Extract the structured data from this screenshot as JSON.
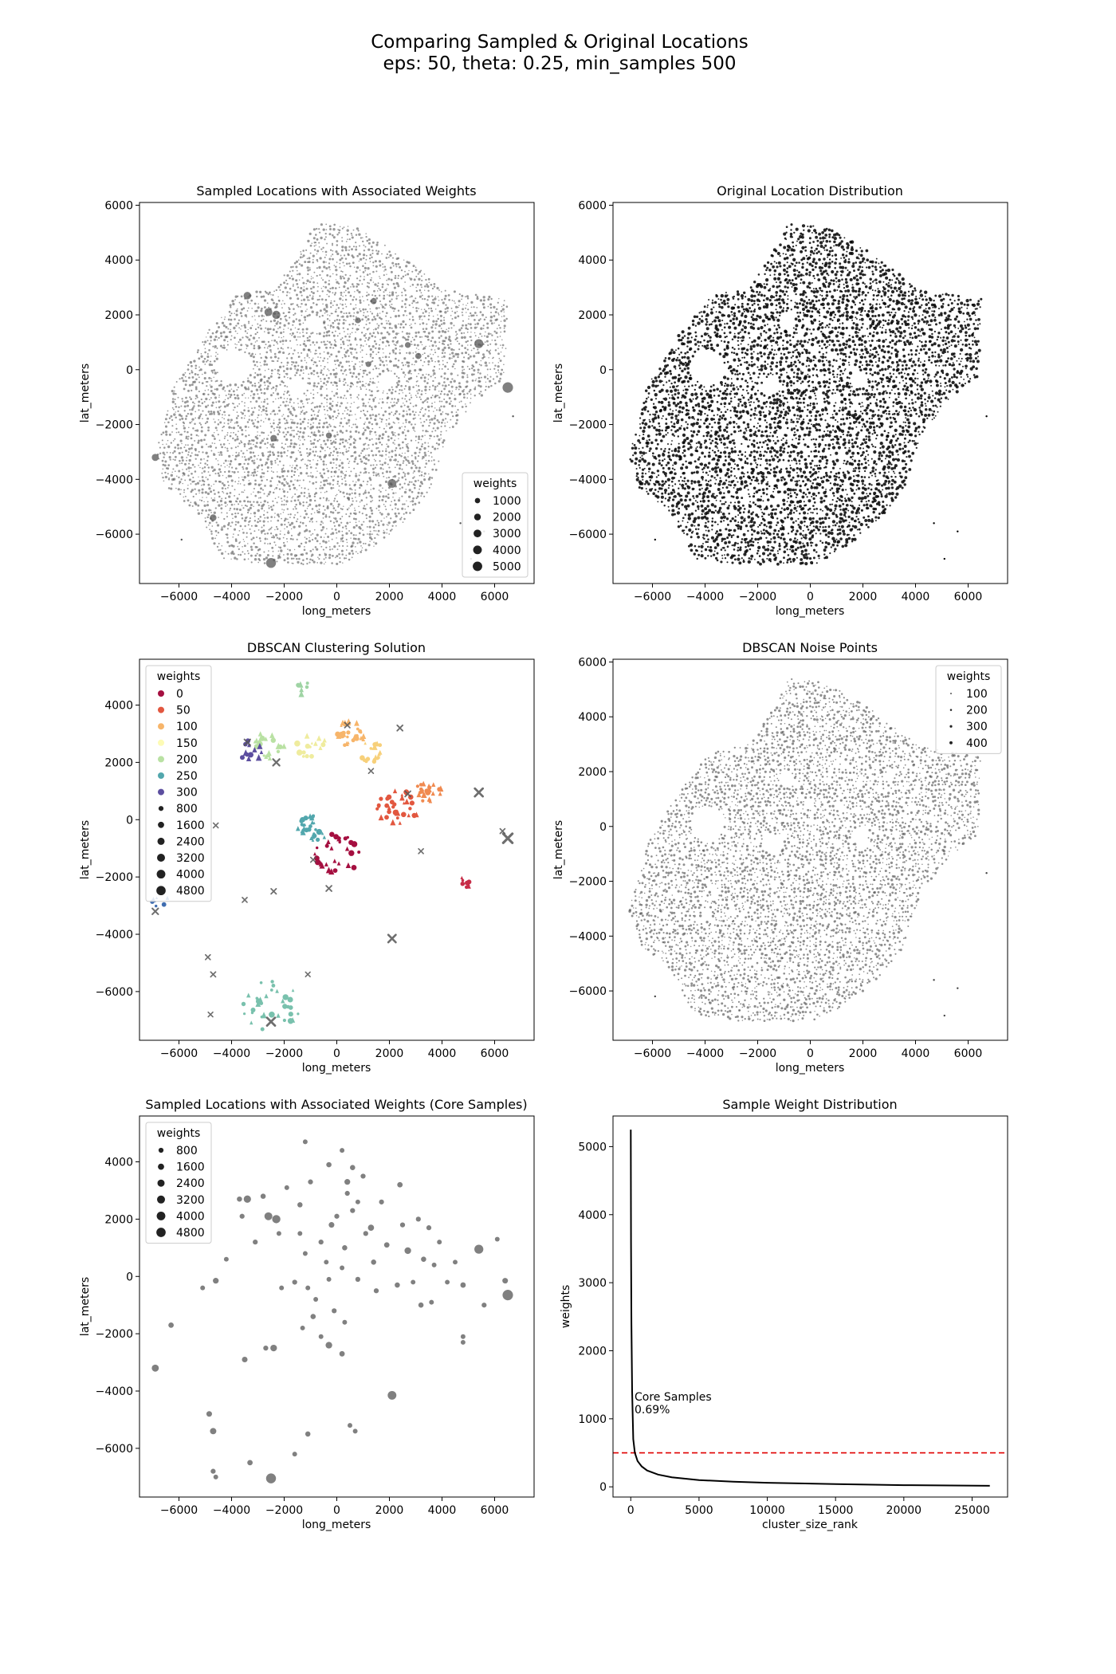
{
  "figure": {
    "title_line1": "Comparing Sampled & Original Locations",
    "title_line2": "eps: 50, theta: 0.25, min_samples 500"
  },
  "chart_data": [
    {
      "id": "sampled",
      "type": "scatter",
      "title": "Sampled Locations with Associated Weights",
      "xlabel": "long_meters",
      "ylabel": "lat_meters",
      "xlim": [
        -7500,
        7500
      ],
      "ylim": [
        -7800,
        6100
      ],
      "xticks": [
        -6000,
        -4000,
        -2000,
        0,
        2000,
        4000,
        6000
      ],
      "yticks": [
        -6000,
        -4000,
        -2000,
        0,
        2000,
        4000,
        6000
      ],
      "marker_color": "#555555",
      "legend": {
        "title": "weights",
        "location": "lower-right",
        "entries": [
          "1000",
          "2000",
          "3000",
          "4000",
          "5000"
        ],
        "sizes": [
          1000,
          2000,
          3000,
          4000,
          5000
        ]
      },
      "texture": "dense",
      "highlights": [
        [
          6500,
          -650,
          5200
        ],
        [
          -2500,
          -7050,
          4500
        ],
        [
          5400,
          950,
          3500
        ],
        [
          2100,
          -4150,
          3200
        ],
        [
          -2300,
          2000,
          2800
        ],
        [
          -2600,
          2100,
          2500
        ],
        [
          -3400,
          2700,
          2200
        ],
        [
          -6900,
          -3200,
          1800
        ],
        [
          -4700,
          -5400,
          1500
        ],
        [
          -2400,
          -2500,
          1500
        ],
        [
          1400,
          2500,
          1200
        ],
        [
          3100,
          500,
          1200
        ],
        [
          -300,
          -2400,
          1100
        ],
        [
          800,
          1800,
          1000
        ],
        [
          1200,
          200,
          900
        ],
        [
          2700,
          900,
          1000
        ]
      ]
    },
    {
      "id": "original",
      "type": "scatter",
      "title": "Original Location Distribution",
      "xlabel": "long_meters",
      "ylabel": "lat_meters",
      "xlim": [
        -7500,
        7500
      ],
      "ylim": [
        -7800,
        6100
      ],
      "xticks": [
        -6000,
        -4000,
        -2000,
        0,
        2000,
        4000,
        6000
      ],
      "yticks": [
        -6000,
        -4000,
        -2000,
        0,
        2000,
        4000,
        6000
      ],
      "marker_color": "#000000",
      "texture": "dense"
    },
    {
      "id": "dbscan",
      "type": "scatter",
      "title": "DBSCAN Clustering Solution",
      "xlabel": "long_meters",
      "ylabel": "lat_meters",
      "xlim": [
        -7500,
        7500
      ],
      "ylim": [
        -7700,
        5600
      ],
      "xticks": [
        -6000,
        -4000,
        -2000,
        0,
        2000,
        4000,
        6000
      ],
      "yticks": [
        -6000,
        -4000,
        -2000,
        0,
        2000,
        4000
      ],
      "legend": {
        "title": "weights",
        "location": "upper-left",
        "color_entries": [
          {
            "label": "0",
            "color": "#a50f40"
          },
          {
            "label": "50",
            "color": "#e2573f"
          },
          {
            "label": "100",
            "color": "#f7b56a"
          },
          {
            "label": "150",
            "color": "#fdfbb5"
          },
          {
            "label": "200",
            "color": "#b9e1a3"
          },
          {
            "label": "250",
            "color": "#52a7ad"
          },
          {
            "label": "300",
            "color": "#5c4e9f"
          }
        ],
        "size_entries": [
          "800",
          "1600",
          "2400",
          "3200",
          "4000",
          "4800"
        ],
        "sizes": [
          800,
          1600,
          2400,
          3200,
          4000,
          4800
        ]
      },
      "clusters": [
        {
          "color": "#a50f40",
          "cx": 0,
          "cy": -1200,
          "spread": 900,
          "n": 30
        },
        {
          "color": "#c72d48",
          "cx": 4800,
          "cy": -2200,
          "spread": 250,
          "n": 8
        },
        {
          "color": "#e2573f",
          "cx": 2300,
          "cy": 400,
          "spread": 800,
          "n": 35
        },
        {
          "color": "#f08a50",
          "cx": 3500,
          "cy": 1000,
          "spread": 500,
          "n": 25
        },
        {
          "color": "#f7b56a",
          "cx": 500,
          "cy": 3000,
          "spread": 600,
          "n": 30
        },
        {
          "color": "#f7d07a",
          "cx": 1300,
          "cy": 2400,
          "spread": 500,
          "n": 20
        },
        {
          "color": "#efec9e",
          "cx": -1000,
          "cy": 2600,
          "spread": 600,
          "n": 15
        },
        {
          "color": "#b9e1a3",
          "cx": -2600,
          "cy": 2600,
          "spread": 600,
          "n": 20
        },
        {
          "color": "#9fd4a4",
          "cx": -1300,
          "cy": 4600,
          "spread": 300,
          "n": 6
        },
        {
          "color": "#52a7ad",
          "cx": -900,
          "cy": -300,
          "spread": 600,
          "n": 30
        },
        {
          "color": "#79c1ad",
          "cx": -2500,
          "cy": -6500,
          "spread": 1100,
          "n": 35
        },
        {
          "color": "#5c4e9f",
          "cx": -3200,
          "cy": 2400,
          "spread": 500,
          "n": 12
        },
        {
          "color": "#3f6db0",
          "cx": -6800,
          "cy": -2800,
          "spread": 400,
          "n": 6
        }
      ],
      "core_markers": [
        [
          6500,
          -650,
          5000
        ],
        [
          5400,
          950,
          3500
        ],
        [
          2100,
          -4150,
          3000
        ],
        [
          -2500,
          -7050,
          3500
        ],
        [
          -2300,
          2000,
          2000
        ],
        [
          -3400,
          2700,
          1500
        ],
        [
          2400,
          3200,
          1200
        ],
        [
          -6900,
          -3200,
          1500
        ],
        [
          -300,
          -2400,
          1200
        ],
        [
          -4700,
          -5400,
          900
        ],
        [
          2700,
          900,
          1200
        ],
        [
          -2400,
          -2500,
          1000
        ],
        [
          3200,
          -1100,
          800
        ],
        [
          6300,
          -400,
          800
        ],
        [
          -4900,
          -4800,
          800
        ],
        [
          -900,
          -1400,
          800
        ],
        [
          -1100,
          -5400,
          700
        ],
        [
          400,
          3300,
          1000
        ],
        [
          1300,
          1700,
          800
        ],
        [
          -3500,
          -2800,
          800
        ],
        [
          -4600,
          -200,
          800
        ],
        [
          -4800,
          -6800,
          700
        ]
      ]
    },
    {
      "id": "noise",
      "type": "scatter",
      "title": "DBSCAN Noise Points",
      "xlabel": "long_meters",
      "ylabel": "lat_meters",
      "xlim": [
        -7500,
        7500
      ],
      "ylim": [
        -7800,
        6100
      ],
      "xticks": [
        -6000,
        -4000,
        -2000,
        0,
        2000,
        4000,
        6000
      ],
      "yticks": [
        -6000,
        -4000,
        -2000,
        0,
        2000,
        4000,
        6000
      ],
      "marker_color": "#444444",
      "legend": {
        "title": "weights",
        "location": "upper-right",
        "entries": [
          "100",
          "200",
          "300",
          "400"
        ],
        "sizes": [
          100,
          200,
          300,
          400
        ]
      },
      "texture": "dense"
    },
    {
      "id": "core",
      "type": "scatter",
      "title": "Sampled Locations with Associated Weights (Core Samples)",
      "xlabel": "long_meters",
      "ylabel": "lat_meters",
      "xlim": [
        -7500,
        7500
      ],
      "ylim": [
        -7700,
        5600
      ],
      "xticks": [
        -6000,
        -4000,
        -2000,
        0,
        2000,
        4000,
        6000
      ],
      "yticks": [
        -6000,
        -4000,
        -2000,
        0,
        2000,
        4000
      ],
      "marker_color": "#555555",
      "legend": {
        "title": "weights",
        "location": "upper-left",
        "entries": [
          "800",
          "1600",
          "2400",
          "3200",
          "4000",
          "4800"
        ],
        "sizes": [
          800,
          1600,
          2400,
          3200,
          4000,
          4800
        ]
      },
      "points": [
        [
          6500,
          -650,
          5200
        ],
        [
          -2500,
          -7050,
          4500
        ],
        [
          5400,
          950,
          3500
        ],
        [
          2100,
          -4150,
          3200
        ],
        [
          -2300,
          2000,
          2800
        ],
        [
          -2600,
          2100,
          2500
        ],
        [
          -3400,
          2700,
          2000
        ],
        [
          -6900,
          -3200,
          1800
        ],
        [
          -4700,
          -5400,
          1300
        ],
        [
          -2400,
          -2500,
          1500
        ],
        [
          2700,
          900,
          1500
        ],
        [
          1300,
          1700,
          1200
        ],
        [
          -300,
          -2400,
          1500
        ],
        [
          400,
          3300,
          1000
        ],
        [
          -3500,
          -2900,
          900
        ],
        [
          -4600,
          -150,
          1000
        ],
        [
          -4850,
          -4800,
          900
        ],
        [
          6400,
          -150,
          900
        ],
        [
          3200,
          -1000,
          700
        ],
        [
          -1100,
          -5500,
          700
        ],
        [
          -3300,
          -6500,
          800
        ],
        [
          -200,
          1800,
          900
        ],
        [
          -1400,
          2500,
          700
        ],
        [
          200,
          -2700,
          800
        ],
        [
          600,
          3800,
          700
        ],
        [
          1400,
          500,
          700
        ],
        [
          2400,
          3200,
          800
        ],
        [
          3300,
          600,
          700
        ],
        [
          2300,
          -300,
          700
        ],
        [
          4800,
          -300,
          800
        ],
        [
          -6300,
          -1700,
          800
        ],
        [
          -2800,
          2800,
          700
        ],
        [
          -3700,
          2700,
          700
        ],
        [
          -900,
          -1400,
          700
        ],
        [
          -1600,
          -200,
          600
        ],
        [
          1900,
          1100,
          800
        ],
        [
          -1000,
          3300,
          600
        ],
        [
          300,
          1000,
          700
        ],
        [
          5600,
          -1000,
          600
        ],
        [
          4800,
          -2300,
          500
        ],
        [
          4800,
          -2100,
          500
        ],
        [
          -300,
          3900,
          700
        ],
        [
          1000,
          3500,
          600
        ],
        [
          -3600,
          2100,
          600
        ],
        [
          -4200,
          600,
          500
        ],
        [
          -5100,
          -400,
          500
        ],
        [
          -4700,
          -6800,
          600
        ],
        [
          -4600,
          -7000,
          500
        ],
        [
          -1600,
          -6200,
          500
        ],
        [
          700,
          -5400,
          500
        ],
        [
          500,
          -5200,
          500
        ],
        [
          -2700,
          -2500,
          600
        ],
        [
          1700,
          2600,
          600
        ],
        [
          2500,
          1800,
          600
        ],
        [
          3500,
          1700,
          600
        ],
        [
          3100,
          2000,
          600
        ],
        [
          3900,
          1200,
          500
        ],
        [
          3700,
          400,
          500
        ],
        [
          2900,
          -200,
          500
        ],
        [
          1500,
          -500,
          600
        ],
        [
          600,
          2300,
          600
        ],
        [
          0,
          2100,
          600
        ],
        [
          -600,
          1200,
          600
        ],
        [
          -1200,
          800,
          500
        ],
        [
          -1100,
          -400,
          500
        ],
        [
          -800,
          -800,
          500
        ],
        [
          -100,
          -1200,
          600
        ],
        [
          300,
          -1600,
          500
        ],
        [
          800,
          -100,
          600
        ],
        [
          1100,
          1500,
          600
        ],
        [
          -1900,
          3100,
          500
        ],
        [
          -2200,
          1500,
          500
        ],
        [
          -3100,
          1200,
          600
        ],
        [
          -2100,
          -400,
          500
        ],
        [
          -1300,
          -1800,
          500
        ],
        [
          -600,
          -2100,
          500
        ],
        [
          6100,
          1300,
          500
        ],
        [
          4500,
          500,
          500
        ],
        [
          4200,
          -200,
          500
        ],
        [
          3600,
          -900,
          500
        ],
        [
          200,
          4400,
          500
        ],
        [
          -1200,
          4700,
          500
        ],
        [
          400,
          2900,
          600
        ],
        [
          800,
          2600,
          500
        ],
        [
          -400,
          500,
          500
        ],
        [
          -1400,
          1500,
          500
        ],
        [
          -300,
          -100,
          500
        ],
        [
          200,
          300,
          500
        ]
      ]
    },
    {
      "id": "weights",
      "type": "line",
      "title": "Sample Weight Distribution",
      "xlabel": "cluster_size_rank",
      "ylabel": "weights",
      "xlim": [
        -1300,
        27600
      ],
      "ylim": [
        -150,
        5450
      ],
      "xticks": [
        0,
        5000,
        10000,
        15000,
        20000,
        25000
      ],
      "yticks": [
        0,
        1000,
        2000,
        3000,
        4000,
        5000
      ],
      "line_color": "#000000",
      "threshold": {
        "value": 500,
        "color": "#e00000",
        "style": "dashed"
      },
      "annotation": {
        "line1": "Core Samples",
        "line2": "0.69%",
        "x": 50,
        "y": 1030
      },
      "x": [
        0,
        20,
        50,
        100,
        182,
        300,
        500,
        800,
        1200,
        2000,
        3000,
        5000,
        7500,
        10000,
        15000,
        20000,
        26300
      ],
      "y": [
        5250,
        3600,
        2400,
        1400,
        700,
        500,
        380,
        300,
        240,
        180,
        140,
        100,
        75,
        60,
        40,
        25,
        15
      ]
    }
  ]
}
